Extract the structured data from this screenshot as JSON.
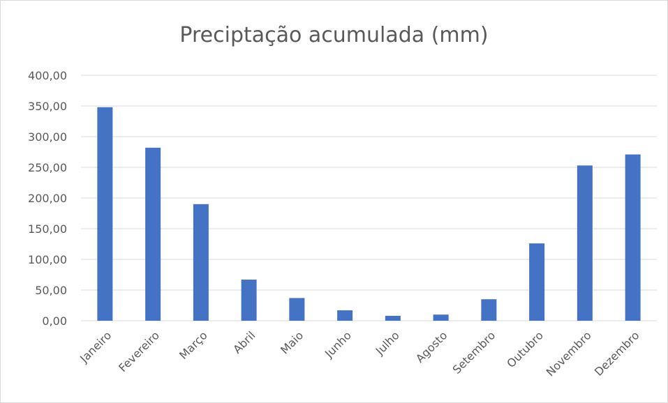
{
  "chart_data": {
    "type": "bar",
    "title": "Preciptação acumulada (mm)",
    "xlabel": "",
    "ylabel": "",
    "categories": [
      "Janeiro",
      "Fevereiro",
      "Março",
      "Abril",
      "Maio",
      "Junho",
      "Julho",
      "Agosto",
      "Setembro",
      "Outubro",
      "Novembro",
      "Dezembro"
    ],
    "values": [
      348,
      282,
      190,
      67,
      37,
      17,
      8,
      10,
      35,
      126,
      253,
      271
    ],
    "ylim": [
      0,
      400
    ],
    "yticks": [
      0,
      50,
      100,
      150,
      200,
      250,
      300,
      350,
      400
    ],
    "ytick_labels": [
      "0,00",
      "50,00",
      "100,00",
      "150,00",
      "200,00",
      "250,00",
      "300,00",
      "350,00",
      "400,00"
    ],
    "grid": true,
    "bar_color": "#4472c4",
    "gridline_color": "#d9d9d9",
    "text_color": "#595959"
  }
}
